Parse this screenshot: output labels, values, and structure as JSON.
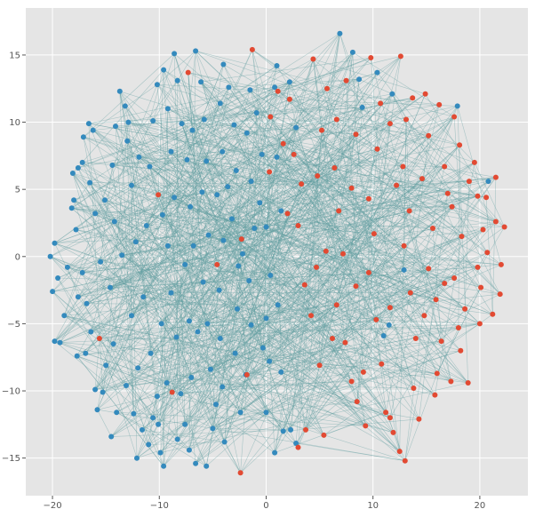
{
  "chart_data": {
    "type": "scatter",
    "subtype": "network-graph",
    "title": "",
    "xlabel": "",
    "ylabel": "",
    "xlim": [
      -22.5,
      24.5
    ],
    "ylim": [
      -17.8,
      18.5
    ],
    "xticks": [
      -20,
      -10,
      0,
      10,
      20
    ],
    "yticks": [
      -15,
      -10,
      -5,
      0,
      5,
      10,
      15
    ],
    "xtick_labels": [
      "−20",
      "−10",
      "0",
      "10",
      "20"
    ],
    "ytick_labels": [
      "−15",
      "−10",
      "−5",
      "0",
      "5",
      "10",
      "15"
    ],
    "grid": true,
    "legend": "none",
    "colors": {
      "background": "#e5e5e5",
      "grid": "#ffffff",
      "edge": "#5f9ea0",
      "blue": "#348abd",
      "red": "#e24a33"
    },
    "series": [
      {
        "color": "blue",
        "points": [
          [
            -20.2,
            0.0
          ],
          [
            -19.8,
            1.0
          ],
          [
            -20.0,
            -2.6
          ],
          [
            -19.8,
            -6.3
          ],
          [
            -19.3,
            -6.4
          ],
          [
            -18.6,
            -0.8
          ],
          [
            -18.2,
            3.6
          ],
          [
            -18.0,
            4.2
          ],
          [
            -18.1,
            6.2
          ],
          [
            -17.6,
            6.6
          ],
          [
            -17.2,
            7.0
          ],
          [
            -17.1,
            8.9
          ],
          [
            -16.6,
            9.9
          ],
          [
            -16.2,
            9.4
          ],
          [
            -16.5,
            5.5
          ],
          [
            -16.0,
            3.2
          ],
          [
            -17.8,
            2.0
          ],
          [
            -17.2,
            -1.2
          ],
          [
            -17.6,
            -3.0
          ],
          [
            -16.8,
            -3.5
          ],
          [
            -16.4,
            -5.6
          ],
          [
            -16.9,
            -7.2
          ],
          [
            -16.0,
            -9.9
          ],
          [
            -15.8,
            -11.4
          ],
          [
            -15.3,
            -10.1
          ],
          [
            -15.0,
            -8.1
          ],
          [
            -14.5,
            -13.4
          ],
          [
            -14.0,
            -11.6
          ],
          [
            -14.3,
            -6.5
          ],
          [
            -14.6,
            -2.3
          ],
          [
            -14.2,
            2.6
          ],
          [
            -14.4,
            6.8
          ],
          [
            -14.1,
            9.7
          ],
          [
            -13.7,
            12.3
          ],
          [
            -13.2,
            11.2
          ],
          [
            -13.0,
            8.6
          ],
          [
            -12.6,
            5.3
          ],
          [
            -12.2,
            1.1
          ],
          [
            -12.6,
            -4.4
          ],
          [
            -12.0,
            -8.3
          ],
          [
            -12.4,
            -11.7
          ],
          [
            -11.6,
            -12.9
          ],
          [
            -11.0,
            -14.0
          ],
          [
            -10.6,
            -12.0
          ],
          [
            -10.1,
            -12.5
          ],
          [
            -9.9,
            -14.6
          ],
          [
            -9.6,
            -15.6
          ],
          [
            -10.2,
            -10.4
          ],
          [
            -10.8,
            -7.2
          ],
          [
            -11.5,
            -3.0
          ],
          [
            -11.2,
            2.3
          ],
          [
            -10.9,
            6.7
          ],
          [
            -10.6,
            10.1
          ],
          [
            -10.2,
            12.8
          ],
          [
            -9.6,
            13.9
          ],
          [
            -9.2,
            11.0
          ],
          [
            -8.9,
            7.8
          ],
          [
            -8.6,
            4.4
          ],
          [
            -9.2,
            0.8
          ],
          [
            -8.9,
            -2.7
          ],
          [
            -8.4,
            -6.0
          ],
          [
            -8.0,
            -10.2
          ],
          [
            -7.6,
            -12.5
          ],
          [
            -7.2,
            -14.4
          ],
          [
            -6.6,
            -15.4
          ],
          [
            -7.0,
            -9.0
          ],
          [
            -7.2,
            -4.8
          ],
          [
            -7.6,
            -0.6
          ],
          [
            -7.1,
            3.7
          ],
          [
            -7.4,
            7.2
          ],
          [
            -7.9,
            9.9
          ],
          [
            -8.3,
            13.1
          ],
          [
            -8.6,
            15.1
          ],
          [
            -6.6,
            15.3
          ],
          [
            -6.1,
            13.0
          ],
          [
            -5.8,
            10.2
          ],
          [
            -5.6,
            7.1
          ],
          [
            -6.0,
            4.8
          ],
          [
            -5.4,
            1.6
          ],
          [
            -5.9,
            -1.9
          ],
          [
            -5.5,
            -5.0
          ],
          [
            -5.2,
            -8.4
          ],
          [
            -4.7,
            -11.0
          ],
          [
            -5.6,
            -15.6
          ],
          [
            -3.9,
            -13.8
          ],
          [
            -4.1,
            -9.7
          ],
          [
            -4.3,
            -6.1
          ],
          [
            -4.4,
            -2.5
          ],
          [
            -4.0,
            1.2
          ],
          [
            -4.6,
            4.6
          ],
          [
            -4.1,
            7.8
          ],
          [
            -4.3,
            11.4
          ],
          [
            -4.0,
            14.3
          ],
          [
            -3.5,
            12.6
          ],
          [
            -3.0,
            9.8
          ],
          [
            -2.8,
            6.4
          ],
          [
            -3.2,
            2.8
          ],
          [
            -2.6,
            -0.7
          ],
          [
            -2.7,
            -3.9
          ],
          [
            -2.9,
            -7.2
          ],
          [
            -2.4,
            -11.6
          ],
          [
            -1.9,
            -8.8
          ],
          [
            -1.4,
            -5.1
          ],
          [
            -1.6,
            -1.8
          ],
          [
            -1.1,
            2.1
          ],
          [
            -1.4,
            5.6
          ],
          [
            -1.8,
            9.2
          ],
          [
            -1.5,
            12.4
          ],
          [
            -0.9,
            10.7
          ],
          [
            -0.4,
            7.6
          ],
          [
            -0.6,
            4.0
          ],
          [
            0.0,
            2.2
          ],
          [
            0.4,
            -1.4
          ],
          [
            0.0,
            -4.6
          ],
          [
            0.3,
            -7.8
          ],
          [
            0.0,
            -11.6
          ],
          [
            0.8,
            -14.6
          ],
          [
            1.6,
            -13.0
          ],
          [
            2.3,
            -12.9
          ],
          [
            2.8,
            -13.9
          ],
          [
            1.4,
            -8.6
          ],
          [
            1.1,
            -3.6
          ],
          [
            1.4,
            3.4
          ],
          [
            1.0,
            7.4
          ],
          [
            0.8,
            12.6
          ],
          [
            1.0,
            14.2
          ],
          [
            2.2,
            13.0
          ],
          [
            2.8,
            9.6
          ],
          [
            6.9,
            16.6
          ],
          [
            8.1,
            15.2
          ],
          [
            8.7,
            13.2
          ],
          [
            9.0,
            11.1
          ],
          [
            10.4,
            13.7
          ],
          [
            11.8,
            12.1
          ],
          [
            12.9,
            -1.0
          ],
          [
            11.5,
            -5.1
          ],
          [
            11.0,
            -5.9
          ],
          [
            17.9,
            11.2
          ],
          [
            20.8,
            5.6
          ],
          [
            -19.5,
            -1.6
          ],
          [
            -18.9,
            -4.4
          ],
          [
            -17.7,
            -7.4
          ],
          [
            -15.5,
            -0.4
          ],
          [
            -15.1,
            4.2
          ],
          [
            -13.5,
            0.1
          ],
          [
            -13.1,
            -9.6
          ],
          [
            -12.1,
            -15.0
          ],
          [
            -9.8,
            -5.0
          ],
          [
            -9.3,
            -9.4
          ],
          [
            -8.3,
            -13.6
          ],
          [
            -6.4,
            -5.6
          ],
          [
            -6.8,
            0.8
          ],
          [
            -9.7,
            3.1
          ],
          [
            -11.9,
            7.4
          ],
          [
            -12.9,
            10.0
          ],
          [
            -6.9,
            9.4
          ],
          [
            -3.6,
            5.2
          ],
          [
            -2.2,
            0.2
          ],
          [
            -0.3,
            -6.8
          ],
          [
            -5.0,
            -12.8
          ]
        ]
      },
      {
        "color": "red",
        "points": [
          [
            -2.4,
            -16.1
          ],
          [
            -1.3,
            15.4
          ],
          [
            0.4,
            10.4
          ],
          [
            0.3,
            6.3
          ],
          [
            1.6,
            8.4
          ],
          [
            2.6,
            7.6
          ],
          [
            2.0,
            3.2
          ],
          [
            3.0,
            2.3
          ],
          [
            3.6,
            -2.1
          ],
          [
            4.2,
            -4.4
          ],
          [
            5.0,
            -8.1
          ],
          [
            5.4,
            -13.3
          ],
          [
            3.7,
            -12.9
          ],
          [
            3.0,
            -14.2
          ],
          [
            4.4,
            14.7
          ],
          [
            5.7,
            12.5
          ],
          [
            6.6,
            10.2
          ],
          [
            6.4,
            6.6
          ],
          [
            6.8,
            3.4
          ],
          [
            7.2,
            0.2
          ],
          [
            6.6,
            -3.6
          ],
          [
            7.4,
            -6.4
          ],
          [
            8.0,
            -9.3
          ],
          [
            8.5,
            -10.8
          ],
          [
            9.3,
            -12.6
          ],
          [
            9.8,
            14.8
          ],
          [
            10.7,
            11.4
          ],
          [
            10.4,
            8.0
          ],
          [
            9.6,
            4.3
          ],
          [
            10.1,
            1.7
          ],
          [
            9.6,
            -1.2
          ],
          [
            10.3,
            -4.7
          ],
          [
            10.8,
            -8.0
          ],
          [
            11.2,
            -11.6
          ],
          [
            11.9,
            -13.1
          ],
          [
            12.5,
            -14.5
          ],
          [
            12.6,
            14.9
          ],
          [
            13.1,
            10.2
          ],
          [
            12.8,
            6.7
          ],
          [
            13.4,
            3.4
          ],
          [
            12.9,
            0.8
          ],
          [
            13.5,
            -2.7
          ],
          [
            14.0,
            -6.1
          ],
          [
            13.8,
            -9.8
          ],
          [
            14.3,
            -12.1
          ],
          [
            14.9,
            12.1
          ],
          [
            15.2,
            9.0
          ],
          [
            14.6,
            5.8
          ],
          [
            15.6,
            2.1
          ],
          [
            15.2,
            -0.9
          ],
          [
            15.9,
            -3.2
          ],
          [
            16.4,
            -6.3
          ],
          [
            16.0,
            -8.7
          ],
          [
            17.3,
            -9.3
          ],
          [
            17.6,
            10.4
          ],
          [
            18.1,
            8.3
          ],
          [
            17.0,
            4.7
          ],
          [
            18.3,
            1.5
          ],
          [
            17.6,
            -1.6
          ],
          [
            18.6,
            -3.9
          ],
          [
            18.2,
            -7.0
          ],
          [
            18.9,
            -9.4
          ],
          [
            19.5,
            7.0
          ],
          [
            19.8,
            4.5
          ],
          [
            20.3,
            2.0
          ],
          [
            20.7,
            0.3
          ],
          [
            20.1,
            -2.3
          ],
          [
            20.0,
            -5.0
          ],
          [
            21.5,
            2.6
          ],
          [
            22.3,
            2.2
          ],
          [
            22.0,
            -0.6
          ],
          [
            21.9,
            -2.8
          ],
          [
            21.5,
            5.9
          ],
          [
            20.6,
            4.4
          ],
          [
            19.0,
            5.6
          ],
          [
            16.7,
            6.7
          ],
          [
            16.2,
            11.3
          ],
          [
            13.7,
            11.8
          ],
          [
            11.6,
            9.9
          ],
          [
            8.4,
            9.1
          ],
          [
            5.2,
            9.4
          ],
          [
            4.8,
            6.0
          ],
          [
            3.3,
            5.4
          ],
          [
            2.2,
            11.7
          ],
          [
            1.1,
            12.3
          ],
          [
            5.6,
            0.4
          ],
          [
            8.4,
            -2.2
          ],
          [
            11.6,
            -3.8
          ],
          [
            14.8,
            -4.4
          ],
          [
            16.7,
            -2.0
          ],
          [
            18.0,
            -5.3
          ],
          [
            15.8,
            -10.3
          ],
          [
            13.0,
            -15.2
          ],
          [
            11.6,
            -12.0
          ],
          [
            9.1,
            -8.6
          ],
          [
            6.2,
            -6.1
          ],
          [
            4.7,
            -0.8
          ],
          [
            8.0,
            5.1
          ],
          [
            12.2,
            5.3
          ],
          [
            17.4,
            3.7
          ],
          [
            19.8,
            -0.8
          ],
          [
            21.2,
            -4.3
          ],
          [
            -8.8,
            -10.1
          ],
          [
            -10.1,
            4.6
          ],
          [
            -7.3,
            13.7
          ],
          [
            -15.6,
            -6.1
          ],
          [
            -4.6,
            -0.6
          ],
          [
            -2.3,
            1.3
          ],
          [
            -1.8,
            -8.8
          ],
          [
            7.5,
            13.1
          ]
        ]
      }
    ]
  }
}
